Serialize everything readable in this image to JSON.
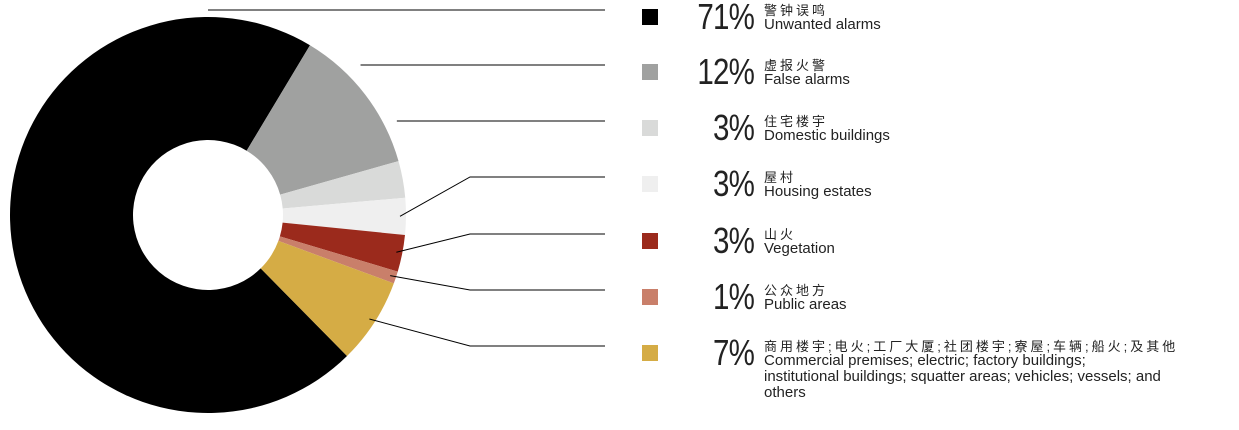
{
  "chart_data": {
    "type": "donut",
    "series": [
      {
        "name": "Unwanted alarms",
        "label_zh": "警钟误鸣",
        "color": "#000000",
        "values": [
          71
        ],
        "value_labels": [
          "71%"
        ]
      },
      {
        "name": "False alarms",
        "label_zh": "虚报火警",
        "color": "#a0a1a0",
        "values": [
          12
        ],
        "value_labels": [
          "12%"
        ]
      },
      {
        "name": "Domestic buildings",
        "label_zh": "住宅楼宇",
        "color": "#d9dad9",
        "values": [
          3
        ],
        "value_labels": [
          "3%"
        ]
      },
      {
        "name": "Housing estates",
        "label_zh": "屋村",
        "color": "#efefef",
        "values": [
          3
        ],
        "value_labels": [
          "3%"
        ]
      },
      {
        "name": "Vegetation",
        "label_zh": "山火",
        "color": "#9b2a1c",
        "values": [
          3
        ],
        "value_labels": [
          "3%"
        ]
      },
      {
        "name": "Public areas",
        "label_zh": "公众地方",
        "color": "#c97f6a",
        "values": [
          1
        ],
        "value_labels": [
          "1%"
        ]
      },
      {
        "name": "Commercial premises; electric; factory buildings; institutional buildings; squatter areas; vehicles; vessels; and others",
        "label_zh": "商用楼宇;电火;工厂大厦;社团楼宇;寮屋;车辆;船火;及其他",
        "color": "#d5ac45",
        "values": [
          7
        ],
        "value_labels": [
          "7%"
        ]
      }
    ]
  }
}
